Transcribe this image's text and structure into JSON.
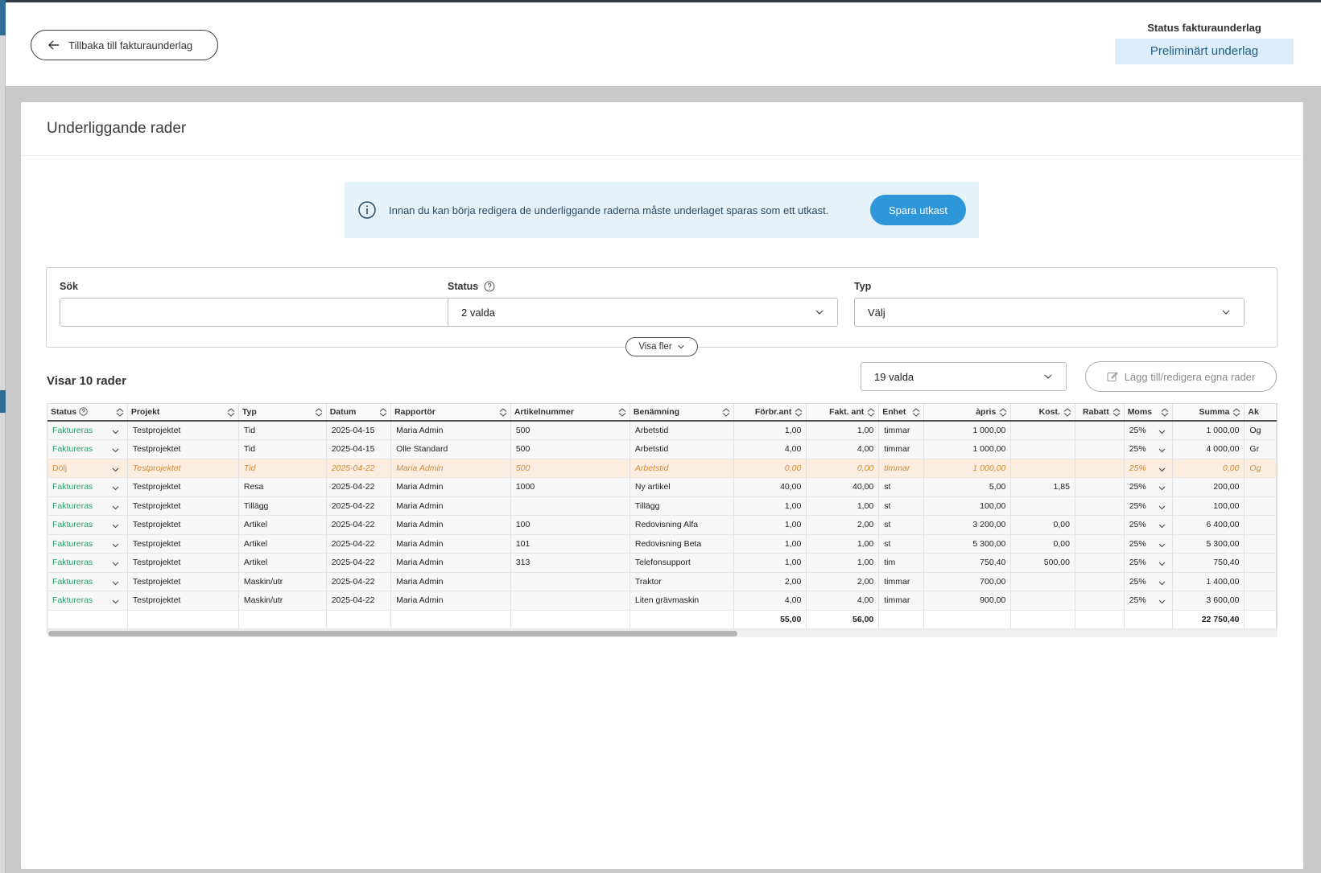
{
  "header": {
    "back_label": "Tillbaka till fakturaunderlag",
    "status_label": "Status fakturaunderlag",
    "status_value": "Preliminärt underlag"
  },
  "card": {
    "title": "Underliggande rader",
    "info_text": "Innan du kan börja redigera de underliggande raderna måste underlaget sparas som ett utkast.",
    "save_draft_label": "Spara utkast"
  },
  "filters": {
    "search_label": "Sök",
    "search_value": "",
    "status_label": "Status",
    "status_value": "2 valda",
    "type_label": "Typ",
    "type_value": "Välj",
    "show_more_label": "Visa fler"
  },
  "toolbar": {
    "row_count": "Visar 10 rader",
    "columns_value": "19 valda",
    "own_rows_label": "Lägg till/redigera egna rader"
  },
  "table": {
    "columns": [
      "Status",
      "Projekt",
      "Typ",
      "Datum",
      "Rapportör",
      "Artikelnummer",
      "Benämning",
      "Förbr.ant",
      "Fakt. ant",
      "Enhet",
      "àpris",
      "Kost.",
      "Rabatt",
      "Moms",
      "Summa",
      "Ak"
    ],
    "rows": [
      [
        "Faktureras",
        "Testprojektet",
        "Tid",
        "2025-04-15",
        "Maria Admin",
        "500",
        "Arbetstid",
        "1,00",
        "1,00",
        "timmar",
        "1 000,00",
        "",
        "",
        "25%",
        "1 000,00",
        "Og"
      ],
      [
        "Faktureras",
        "Testprojektet",
        "Tid",
        "2025-04-15",
        "Olle Standard",
        "500",
        "Arbetstid",
        "4,00",
        "4,00",
        "timmar",
        "1 000,00",
        "",
        "",
        "25%",
        "4 000,00",
        "Gr"
      ],
      [
        "Dölj",
        "Testprojektet",
        "Tid",
        "2025-04-22",
        "Maria Admin",
        "500",
        "Arbetstid",
        "0,00",
        "0,00",
        "timmar",
        "1 000,00",
        "",
        "",
        "25%",
        "0,00",
        "Og"
      ],
      [
        "Faktureras",
        "Testprojektet",
        "Resa",
        "2025-04-22",
        "Maria Admin",
        "1000",
        "Ny artikel",
        "40,00",
        "40,00",
        "st",
        "5,00",
        "1,85",
        "",
        "25%",
        "200,00",
        ""
      ],
      [
        "Faktureras",
        "Testprojektet",
        "Tillägg",
        "2025-04-22",
        "Maria Admin",
        "",
        "Tillägg",
        "1,00",
        "1,00",
        "st",
        "100,00",
        "",
        "",
        "25%",
        "100,00",
        ""
      ],
      [
        "Faktureras",
        "Testprojektet",
        "Artikel",
        "2025-04-22",
        "Maria Admin",
        "100",
        "Redovisning Alfa",
        "1,00",
        "2,00",
        "st",
        "3 200,00",
        "0,00",
        "",
        "25%",
        "6 400,00",
        ""
      ],
      [
        "Faktureras",
        "Testprojektet",
        "Artikel",
        "2025-04-22",
        "Maria Admin",
        "101",
        "Redovisning Beta",
        "1,00",
        "1,00",
        "st",
        "5 300,00",
        "0,00",
        "",
        "25%",
        "5 300,00",
        ""
      ],
      [
        "Faktureras",
        "Testprojektet",
        "Artikel",
        "2025-04-22",
        "Maria Admin",
        "313",
        "Telefonsupport",
        "1,00",
        "1,00",
        "tim",
        "750,40",
        "500,00",
        "",
        "25%",
        "750,40",
        ""
      ],
      [
        "Faktureras",
        "Testprojektet",
        "Maskin/utr",
        "2025-04-22",
        "Maria Admin",
        "",
        "Traktor",
        "2,00",
        "2,00",
        "timmar",
        "700,00",
        "",
        "",
        "25%",
        "1 400,00",
        ""
      ],
      [
        "Faktureras",
        "Testprojektet",
        "Maskin/utr",
        "2025-04-22",
        "Maria Admin",
        "",
        "Liten grävmaskin",
        "4,00",
        "4,00",
        "timmar",
        "900,00",
        "",
        "",
        "25%",
        "3 600,00",
        ""
      ]
    ],
    "hidden_row_index": 2,
    "totals": {
      "forbr_ant": "55,00",
      "fakt_ant": "56,00",
      "summa": "22 750,40"
    }
  },
  "colors": {
    "accent": "#2d97d9",
    "status_green": "#2a9d6b",
    "hidden_orange": "#d18a3a",
    "info_bg": "#e5f2fa"
  }
}
